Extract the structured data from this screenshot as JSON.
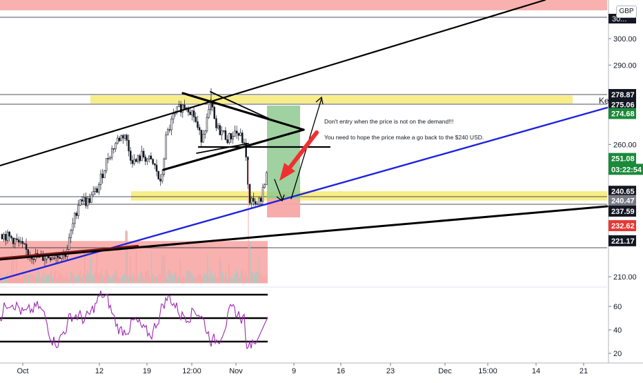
{
  "header": {
    "currency": "GBP",
    "key_label": "Ke"
  },
  "annotations": {
    "line1": "Don't entry when the price is not on the demand!!!",
    "line2": "You need to hope the price make a go back to the $240 USD."
  },
  "colors": {
    "up": "#26a69a",
    "down": "#ef5350",
    "candle": "#131722",
    "blue_trend": "#1e22e0",
    "zone_yellow": "#f7ec83",
    "zone_red": "#f7a8a6",
    "rsi_line": "#9c27b0",
    "arrow_red": "#f03030",
    "green_box": "#8fc98f"
  },
  "chart_data": [
    {
      "type": "candlestick",
      "title": "",
      "currency": "GBP",
      "y_axis": {
        "ticks": [
          "300.00",
          "290.00",
          "260.00",
          "210.00"
        ],
        "range": [
          205,
          318
        ]
      },
      "x_axis": {
        "ticks": [
          "Oct",
          "12",
          "19",
          "12:00",
          "Nov",
          "9",
          "16",
          "23",
          "Dec",
          "15:00",
          "14",
          "21"
        ]
      },
      "price_labels": [
        {
          "value": "278.87",
          "price": 278.87,
          "color": "#131722",
          "text_color": "#ffffff"
        },
        {
          "value": "275.06",
          "price": 275.06,
          "color": "#131722",
          "text_color": "#ffffff"
        },
        {
          "value": "274.68",
          "price": 271.7,
          "color": "#1b8a3a",
          "text_color": "#ffffff"
        },
        {
          "value": "251.08",
          "price": 254.7,
          "color": "#1b8a3a",
          "text_color": "#ffffff"
        },
        {
          "value": "03:22:54",
          "price": 250.6,
          "color": "#1b8a3a",
          "text_color": "#ffffff"
        },
        {
          "value": "240.65",
          "price": 242.3,
          "color": "#131722",
          "text_color": "#ffffff"
        },
        {
          "value": "240.47",
          "price": 238.8,
          "color": "#787b86",
          "text_color": "#ffffff"
        },
        {
          "value": "237.59",
          "price": 234.8,
          "color": "#131722",
          "text_color": "#ffffff"
        },
        {
          "value": "232.62",
          "price": 229.3,
          "color": "#e53935",
          "text_color": "#ffffff"
        },
        {
          "value": "221.17",
          "price": 223.6,
          "color": "#131722",
          "text_color": "#ffffff"
        }
      ],
      "truncated_top_label": "30...",
      "zones": [
        {
          "kind": "supply",
          "from": 310.7,
          "to": 318
        },
        {
          "kind": "demand",
          "from": 207.5,
          "to": 223.5
        },
        {
          "kind": "resistance",
          "from": 275.5,
          "to": 278.5
        },
        {
          "kind": "support",
          "from": 238.8,
          "to": 242.3
        }
      ]
    },
    {
      "type": "line",
      "name": "",
      "y_axis": {
        "ticks": [
          "60",
          "40",
          "20"
        ],
        "range": [
          15,
          78
        ]
      },
      "guides": [
        70,
        50,
        30
      ]
    }
  ]
}
